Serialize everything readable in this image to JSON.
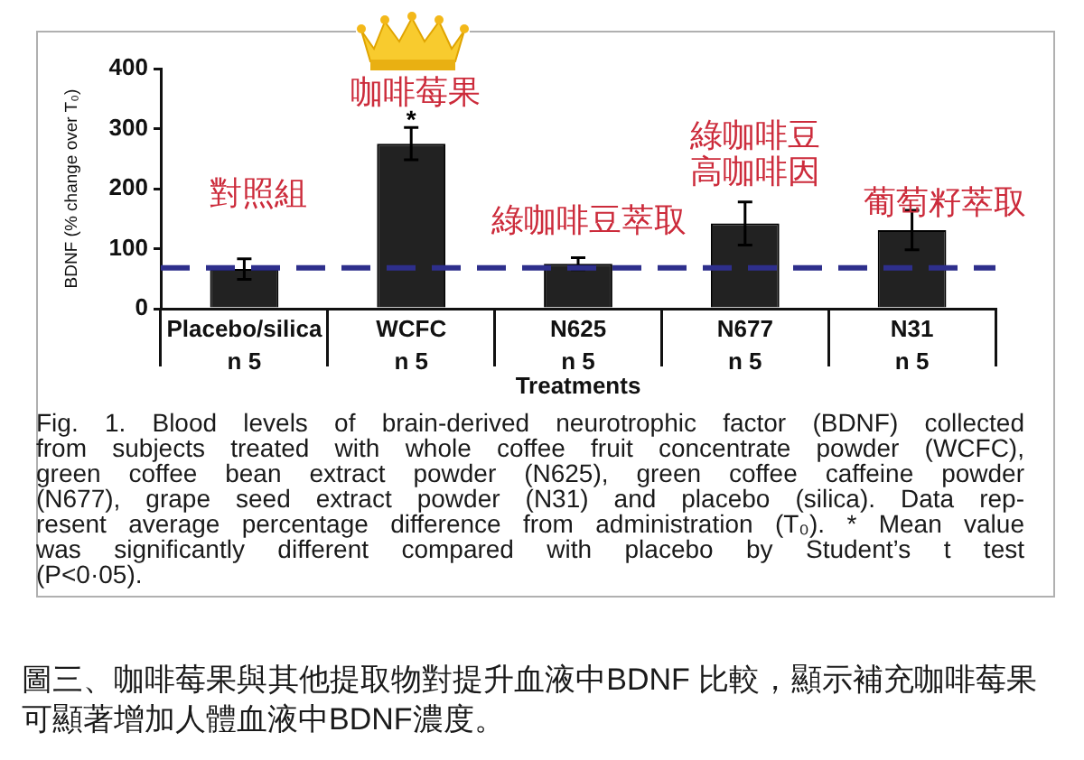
{
  "chart_data": {
    "type": "bar",
    "xlabel": "Treatments",
    "ylabel": "BDNF (% change over T₀)",
    "categories": [
      "Placebo/silica\nn 5",
      "WCFC\nn 5",
      "N625\nn 5",
      "N677\nn 5",
      "N31\nn 5"
    ],
    "values": [
      66,
      275,
      75,
      142,
      131
    ],
    "errors": [
      17,
      27,
      10,
      36,
      33
    ],
    "color": "#222222",
    "ylim": [
      0,
      400
    ],
    "yticks": [
      0,
      100,
      200,
      300,
      400
    ],
    "ref_lines": [
      {
        "axis": "y",
        "value": 68,
        "color": "#2e2f8c",
        "line_style": "dashed"
      }
    ],
    "annotations": [
      {
        "text": "*",
        "x": "WCFC\nn 5",
        "y": 312
      },
      "對照組",
      "咖啡莓果",
      "綠咖啡豆萃取",
      "綠咖啡豆高咖啡因",
      "葡萄籽萃取",
      "Fig. 1. Blood levels of brain-derived neurotrophic factor (BDNF) collected\nfrom subjects treated with whole coffee fruit concentrate powder (WCFC),\ngreen coffee bean extract powder (N625), green coffee caffeine powder\n(N677), grape seed extract powder (N31) and placebo (silica). Data rep-\nresent average percentage difference from administration (T₀). * Mean value\nwas significantly different compared with placebo by Student’s t test\n(P<0·05).",
      "圖三、咖啡莓果與其他提取物對提升血液中BDNF 比較，顯示補充咖啡莓果可顯著增加人體血液中BDNF濃度。"
    ]
  }
}
